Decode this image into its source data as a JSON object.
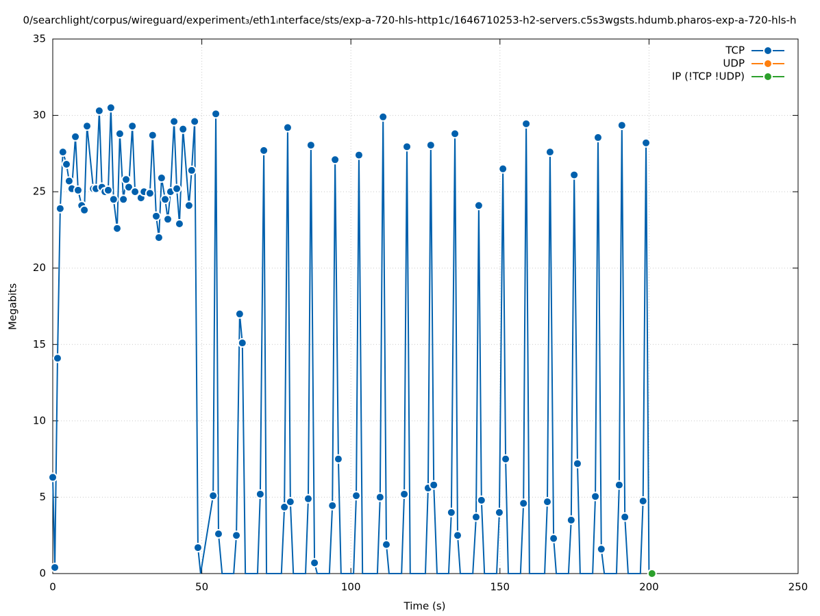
{
  "chart_data": {
    "type": "line",
    "title": "0/searchlight/corpus/wireguard/experiment₃/eth1ᵢnterface/sts/exp-a-720-hls-http1c/1646710253-h2-servers.c5s3wgsts.hdumb.pharos-exp-a-720-hls-h",
    "x_label": "Time (s)",
    "y_label": "Megabits",
    "xlim": [
      0,
      250
    ],
    "ylim": [
      0,
      35
    ],
    "xticks": [
      0,
      50,
      100,
      150,
      200,
      250
    ],
    "yticks": [
      0,
      5,
      10,
      15,
      20,
      25,
      30,
      35
    ],
    "grid": true,
    "legend": "top-right",
    "series": [
      {
        "name": "TCP",
        "color": "#0060ad",
        "x": [
          0,
          0.7,
          1.6,
          2.5,
          3.4,
          4.6,
          5.5,
          6.4,
          7.6,
          8.5,
          9.7,
          10.6,
          11.5,
          13.6,
          14.5,
          15.6,
          16.5,
          17.5,
          18.6,
          19.5,
          20.4,
          21.6,
          22.5,
          23.7,
          24.6,
          25.5,
          26.7,
          27.6,
          29.6,
          30.6,
          32.6,
          33.5,
          34.7,
          35.6,
          36.5,
          37.7,
          38.6,
          39.5,
          40.7,
          41.6,
          42.5,
          43.7,
          45.7,
          46.6,
          47.6,
          48.7,
          49.6,
          53.8,
          54.7,
          55.6,
          56.8,
          60.7,
          61.6,
          62.7,
          63.6,
          64.6,
          68.7,
          69.6,
          70.8,
          71.7,
          76.7,
          77.7,
          78.8,
          79.7,
          80.7,
          84.8,
          85.7,
          86.6,
          87.8,
          88.7,
          92.8,
          93.8,
          94.7,
          95.8,
          96.7,
          100.9,
          101.8,
          102.7,
          103.9,
          108.9,
          109.8,
          110.8,
          111.9,
          112.8,
          117,
          117.9,
          118.8,
          119.9,
          125,
          125.9,
          126.8,
          127.8,
          128.9,
          132.8,
          133.7,
          134.9,
          135.8,
          136.7,
          140.9,
          142,
          142.9,
          143.8,
          144.8,
          148.9,
          149.8,
          151,
          151.9,
          152.8,
          156.9,
          157.9,
          158.8,
          159.9,
          165,
          165.9,
          166.8,
          168,
          168.9,
          173,
          173.9,
          174.9,
          176,
          176.9,
          181.1,
          182,
          182.9,
          184,
          185,
          189.1,
          190,
          190.9,
          191.9,
          193,
          197.1,
          198,
          199,
          200
        ],
        "values": [
          6.3,
          0.4,
          14.1,
          23.9,
          27.6,
          26.8,
          25.7,
          25.2,
          28.6,
          25.1,
          24.1,
          23.8,
          29.3,
          25.2,
          25.2,
          30.3,
          25.3,
          25.0,
          25.1,
          30.5,
          24.5,
          22.6,
          28.8,
          24.5,
          25.8,
          25.3,
          29.3,
          25.0,
          24.6,
          25.0,
          24.9,
          28.7,
          23.4,
          22.0,
          25.9,
          24.5,
          23.2,
          25.0,
          29.6,
          25.2,
          22.9,
          29.1,
          24.1,
          26.4,
          29.6,
          1.7,
          0,
          5.1,
          30.1,
          2.6,
          0,
          0,
          2.5,
          17.0,
          15.1,
          0,
          0,
          5.2,
          27.7,
          0,
          0,
          4.35,
          29.2,
          4.7,
          0,
          0,
          4.9,
          28.05,
          0.7,
          0,
          0,
          4.45,
          27.1,
          7.5,
          0,
          0,
          5.1,
          27.4,
          0,
          0,
          5.0,
          29.9,
          1.9,
          0,
          0,
          5.2,
          27.95,
          0,
          0,
          5.6,
          28.05,
          5.8,
          0,
          0,
          4.0,
          28.8,
          2.5,
          0,
          0,
          3.7,
          24.1,
          4.8,
          0,
          0,
          4.0,
          26.5,
          7.5,
          0,
          0,
          4.6,
          29.45,
          0,
          0,
          4.7,
          27.6,
          2.3,
          0,
          0,
          3.5,
          26.1,
          7.2,
          0,
          0,
          5.05,
          28.55,
          1.6,
          0,
          0,
          5.8,
          29.35,
          3.7,
          0,
          0,
          4.75,
          28.2,
          0
        ]
      },
      {
        "name": "UDP",
        "color": "#ff7f0e",
        "x": [],
        "values": []
      },
      {
        "name": "IP (!TCP  !UDP)",
        "color": "#2ca02c",
        "x": [
          201
        ],
        "values": [
          0
        ]
      }
    ]
  }
}
